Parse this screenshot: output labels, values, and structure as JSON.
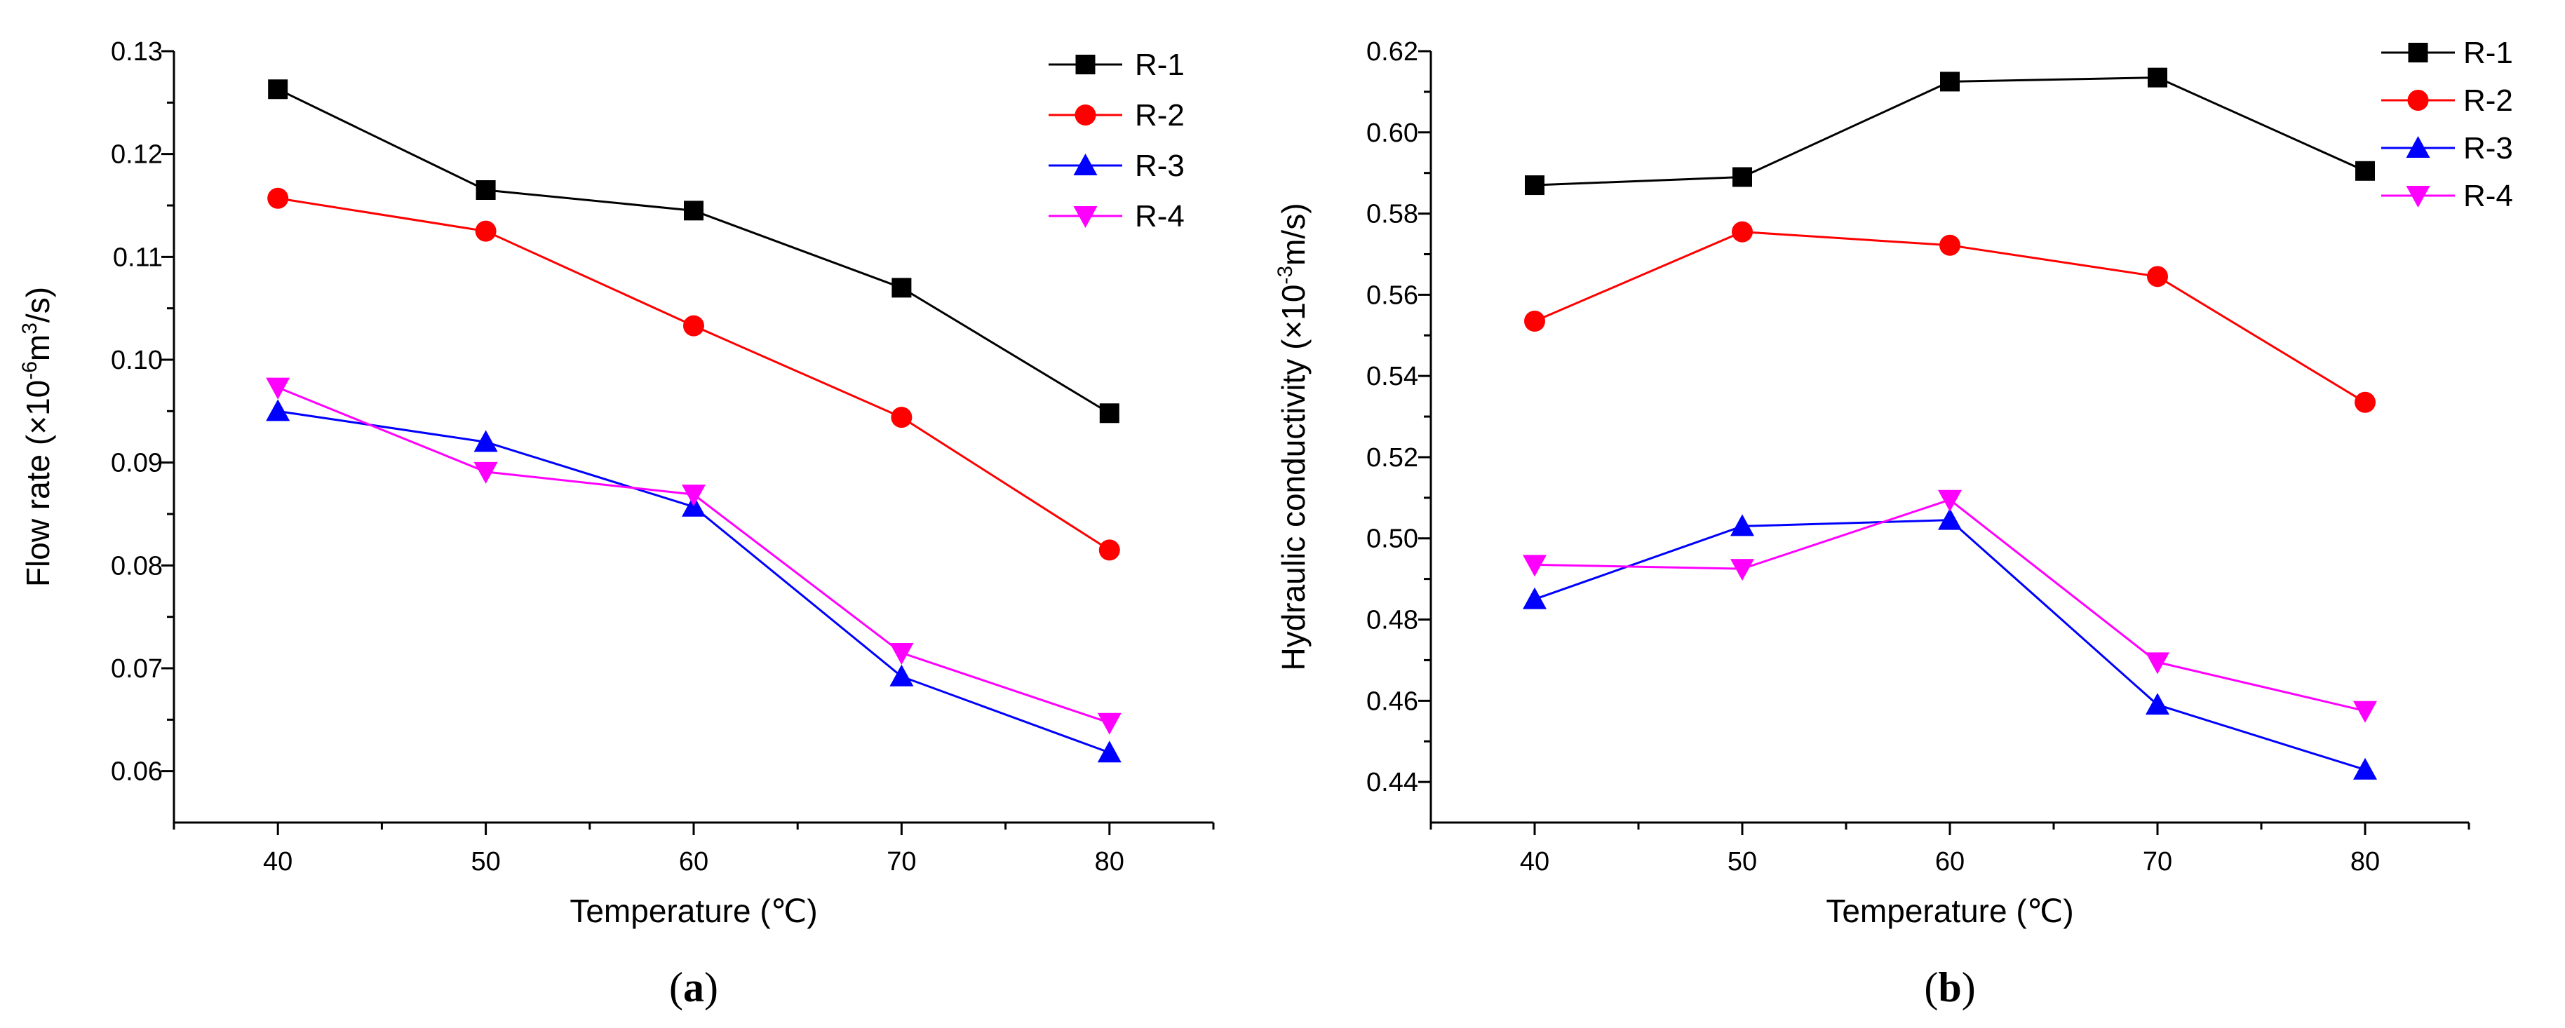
{
  "chart_data": [
    {
      "type": "line",
      "panel": "a",
      "panel_label": {
        "open": "(",
        "letter": "a",
        "close": ")"
      },
      "xlabel": "Temperature (℃)",
      "ylabel": {
        "prefix": "Flow rate (×10",
        "exp1": "-6",
        "mid": "m",
        "exp2": "3",
        "suffix": "/s)"
      },
      "x": [
        40,
        50,
        60,
        70,
        80
      ],
      "xlim": [
        35,
        85
      ],
      "xticks": [
        40,
        50,
        60,
        70,
        80
      ],
      "ylim": [
        0.055,
        0.13
      ],
      "yticks": [
        0.06,
        0.07,
        0.08,
        0.09,
        0.1,
        0.11,
        0.12,
        0.13
      ],
      "ytick_labels": [
        "0.06",
        "0.07",
        "0.08",
        "0.09",
        "0.10",
        "0.11",
        "0.12",
        "0.13"
      ],
      "legend_position": "top-right",
      "series": [
        {
          "name": "R-1",
          "color": "#000000",
          "marker": "square",
          "values": [
            0.1263,
            0.1165,
            0.1145,
            0.107,
            0.0948
          ]
        },
        {
          "name": "R-2",
          "color": "#ff0000",
          "marker": "circle",
          "values": [
            0.1157,
            0.1125,
            0.1033,
            0.0944,
            0.0815
          ]
        },
        {
          "name": "R-3",
          "color": "#0000ff",
          "marker": "triangle-up",
          "values": [
            0.095,
            0.092,
            0.0857,
            0.0692,
            0.0618
          ]
        },
        {
          "name": "R-4",
          "color": "#ff00ff",
          "marker": "triangle-down",
          "values": [
            0.0973,
            0.0891,
            0.0869,
            0.0715,
            0.0647
          ]
        }
      ]
    },
    {
      "type": "line",
      "panel": "b",
      "panel_label": {
        "open": "(",
        "letter": "b",
        "close": ")"
      },
      "xlabel": "Temperature (℃)",
      "ylabel": {
        "prefix": "Hydraulic conductivity (×10",
        "exp1": "-3",
        "mid": "m/s)",
        "exp2": "",
        "suffix": ""
      },
      "x": [
        40,
        50,
        60,
        70,
        80
      ],
      "xlim": [
        35,
        85
      ],
      "xticks": [
        40,
        50,
        60,
        70,
        80
      ],
      "ylim": [
        0.43,
        0.62
      ],
      "yticks": [
        0.44,
        0.46,
        0.48,
        0.5,
        0.52,
        0.54,
        0.56,
        0.58,
        0.6,
        0.62
      ],
      "ytick_labels": [
        "0.44",
        "0.46",
        "0.48",
        "0.50",
        "0.52",
        "0.54",
        "0.56",
        "0.58",
        "0.60",
        "0.62"
      ],
      "legend_position": "top-right",
      "series": [
        {
          "name": "R-1",
          "color": "#000000",
          "marker": "square",
          "values": [
            0.587,
            0.589,
            0.6125,
            0.6135,
            0.5905
          ]
        },
        {
          "name": "R-2",
          "color": "#ff0000",
          "marker": "circle",
          "values": [
            0.5535,
            0.5755,
            0.5722,
            0.5645,
            0.5335
          ]
        },
        {
          "name": "R-3",
          "color": "#0000ff",
          "marker": "triangle-up",
          "values": [
            0.485,
            0.503,
            0.5045,
            0.459,
            0.443
          ]
        },
        {
          "name": "R-4",
          "color": "#ff00ff",
          "marker": "triangle-down",
          "values": [
            0.4935,
            0.4925,
            0.5095,
            0.4695,
            0.4575
          ]
        }
      ]
    }
  ]
}
